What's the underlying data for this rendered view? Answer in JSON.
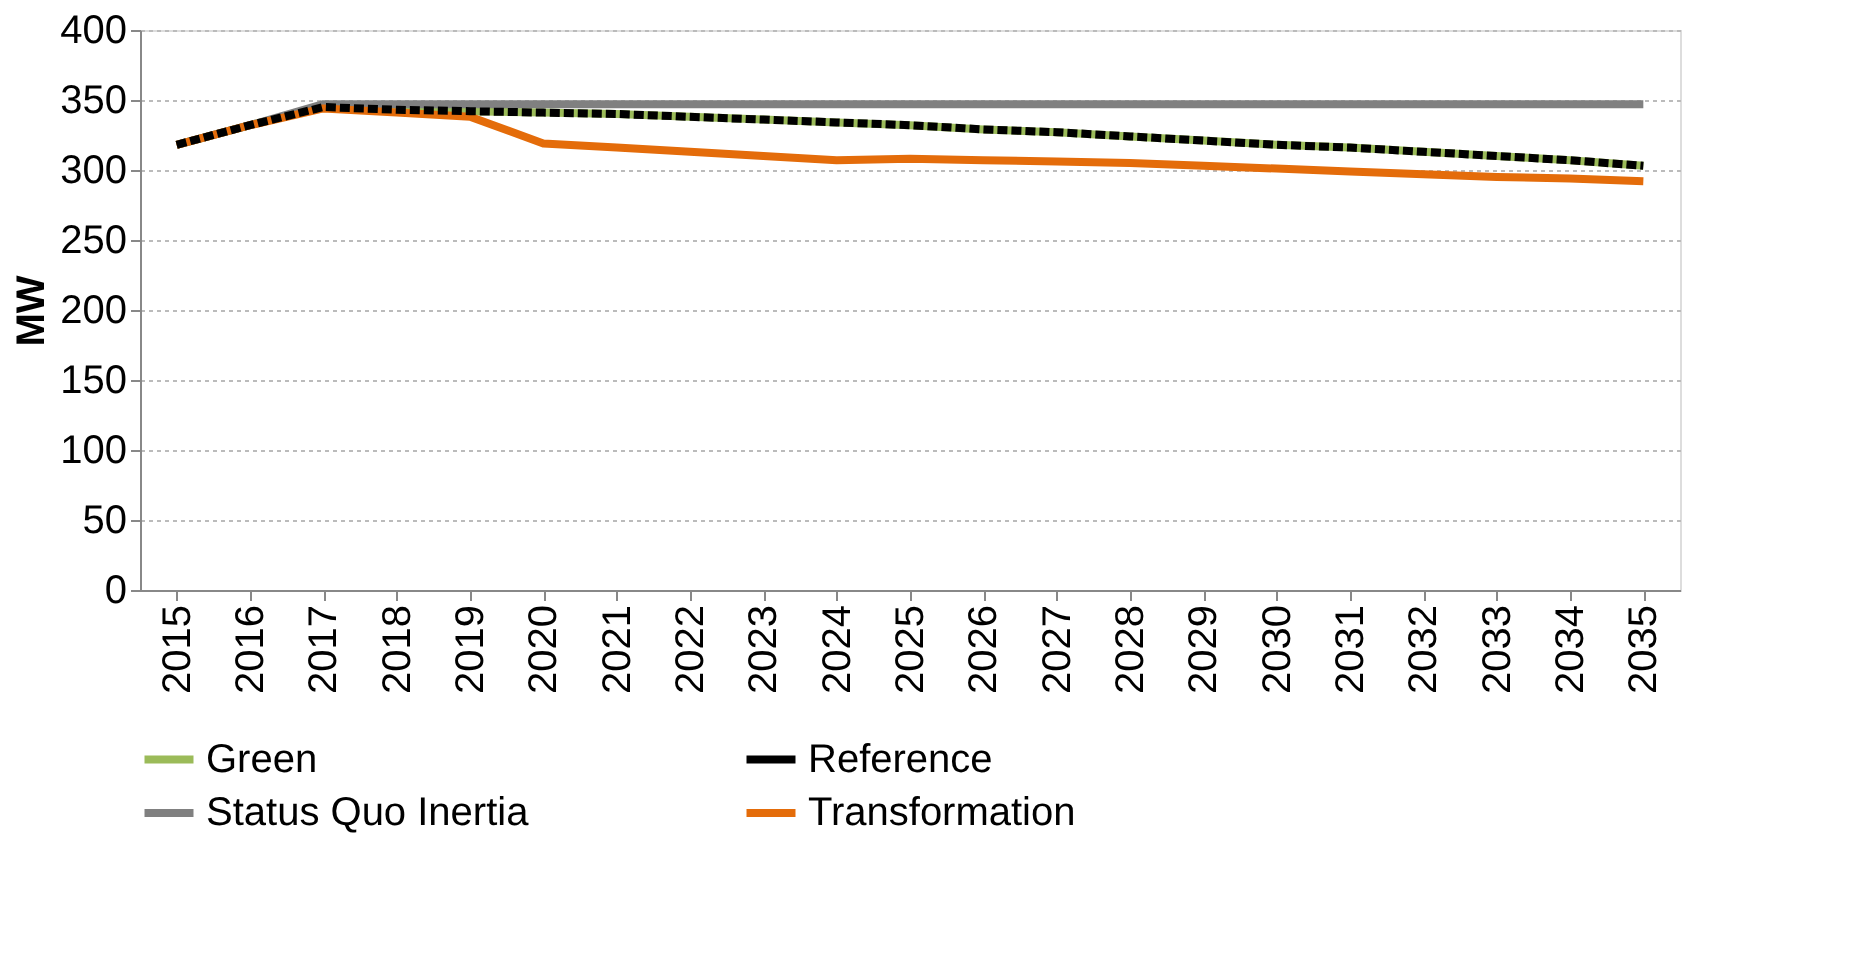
{
  "chart_data": {
    "type": "line",
    "ylabel": "MW",
    "categories": [
      "2015",
      "2016",
      "2017",
      "2018",
      "2019",
      "2020",
      "2021",
      "2022",
      "2023",
      "2024",
      "2025",
      "2026",
      "2027",
      "2028",
      "2029",
      "2030",
      "2031",
      "2032",
      "2033",
      "2034",
      "2035"
    ],
    "ylim": [
      0,
      400
    ],
    "yticks": [
      0,
      50,
      100,
      150,
      200,
      250,
      300,
      350,
      400
    ],
    "grid": "y",
    "legend": "bottom",
    "marker": "none",
    "series": [
      {
        "name": "Green",
        "color": "#9bbb59",
        "line_style": "solid",
        "values": [
          318,
          332,
          345,
          343,
          342,
          341,
          340,
          338,
          336,
          334,
          332,
          329,
          327,
          324,
          321,
          318,
          316,
          313,
          310,
          307,
          303
        ]
      },
      {
        "name": "Reference",
        "color": "#000000",
        "line_style": "dashed",
        "values": [
          318,
          332,
          345,
          343,
          342,
          341,
          340,
          338,
          336,
          334,
          332,
          329,
          327,
          324,
          321,
          318,
          316,
          313,
          310,
          307,
          303
        ]
      },
      {
        "name": "Status Quo Inertia",
        "color": "#808080",
        "line_style": "solid",
        "values": [
          318,
          332,
          347,
          347,
          347,
          347,
          347,
          347,
          347,
          347,
          347,
          347,
          347,
          347,
          347,
          347,
          347,
          347,
          347,
          347,
          347
        ]
      },
      {
        "name": "Transformation",
        "color": "#e46c0a",
        "line_style": "solid",
        "values": [
          318,
          332,
          344,
          341,
          338,
          319,
          316,
          313,
          310,
          307,
          308,
          307,
          306,
          305,
          303,
          301,
          299,
          297,
          295,
          294,
          292
        ]
      }
    ]
  }
}
